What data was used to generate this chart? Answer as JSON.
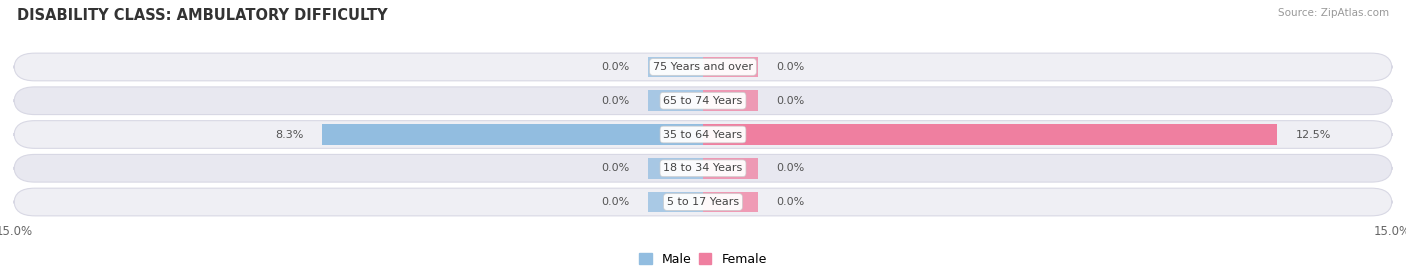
{
  "title": "DISABILITY CLASS: AMBULATORY DIFFICULTY",
  "source": "Source: ZipAtlas.com",
  "categories": [
    "5 to 17 Years",
    "18 to 34 Years",
    "35 to 64 Years",
    "65 to 74 Years",
    "75 Years and over"
  ],
  "male_values": [
    0.0,
    0.0,
    8.3,
    0.0,
    0.0
  ],
  "female_values": [
    0.0,
    0.0,
    12.5,
    0.0,
    0.0
  ],
  "x_max": 15.0,
  "male_color": "#92bde0",
  "female_color": "#ef7fa0",
  "row_color_odd": "#efeff4",
  "row_color_even": "#e8e8f0",
  "row_border_color": "#d8d8e4",
  "label_box_color": "#ffffff",
  "bar_height": 0.62,
  "stub_size": 1.2,
  "label_fontsize": 8.0,
  "title_fontsize": 10.5,
  "axis_label_fontsize": 8.5,
  "legend_fontsize": 9,
  "male_label": "Male",
  "female_label": "Female"
}
